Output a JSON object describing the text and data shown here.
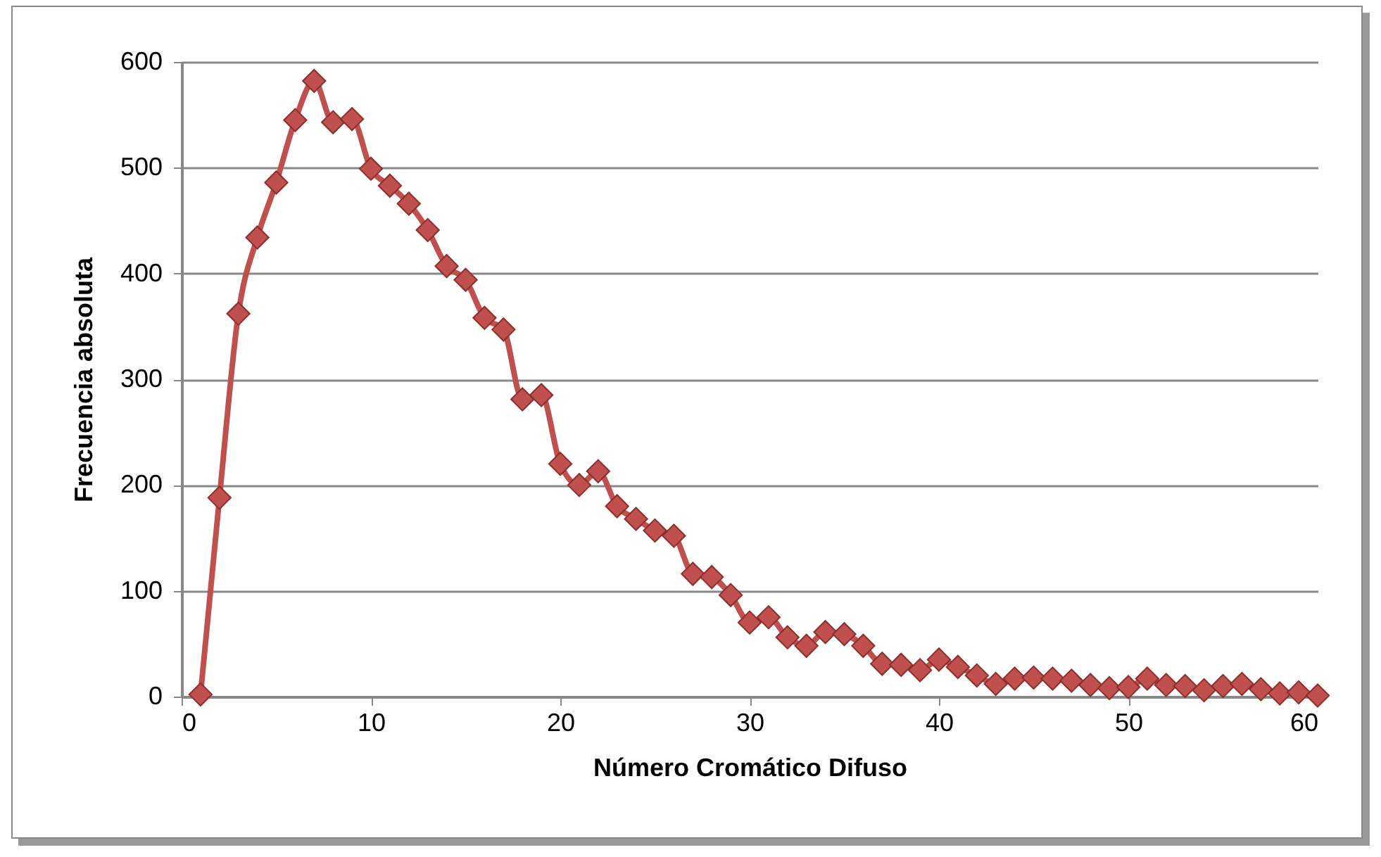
{
  "chart_data": {
    "type": "line",
    "xlabel": "Número Cromático Difuso",
    "ylabel": "Frecuencia absoluta",
    "x": [
      1,
      2,
      3,
      4,
      5,
      6,
      7,
      8,
      9,
      10,
      11,
      12,
      13,
      14,
      15,
      16,
      17,
      18,
      19,
      20,
      21,
      22,
      23,
      24,
      25,
      26,
      27,
      28,
      29,
      30,
      31,
      32,
      33,
      34,
      35,
      36,
      37,
      38,
      39,
      40,
      41,
      42,
      43,
      44,
      45,
      46,
      47,
      48,
      49,
      50,
      51,
      52,
      53,
      54,
      55,
      56,
      57,
      58,
      59,
      60
    ],
    "series": [
      {
        "color": "#c0504d",
        "values": [
          2,
          188,
          362,
          434,
          486,
          545,
          582,
          543,
          546,
          499,
          483,
          466,
          441,
          407,
          394,
          358,
          347,
          281,
          285,
          220,
          200,
          213,
          180,
          168,
          157,
          152,
          116,
          113,
          96,
          70,
          75,
          56,
          48,
          61,
          59,
          48,
          31,
          30,
          25,
          35,
          28,
          20,
          12,
          17,
          18,
          17,
          15,
          11,
          8,
          9,
          17,
          11,
          10,
          6,
          10,
          12,
          7,
          3,
          4,
          1
        ]
      }
    ],
    "xlim": [
      0,
      60
    ],
    "xticks": [
      0,
      10,
      20,
      30,
      40,
      50,
      60
    ],
    "ylim": [
      0,
      600
    ],
    "yticks": [
      0,
      100,
      200,
      300,
      400,
      500,
      600
    ],
    "grid": "y",
    "legend": false,
    "marker": "diamond",
    "line_style": "solid"
  }
}
